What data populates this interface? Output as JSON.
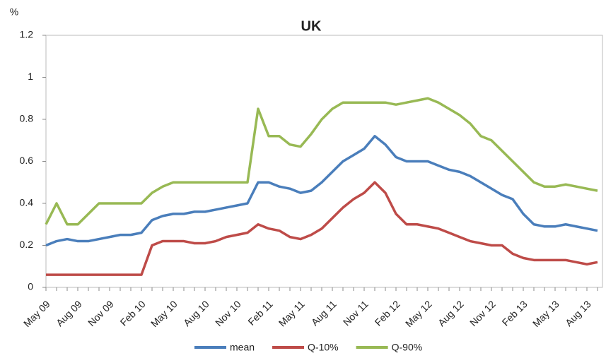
{
  "chart_data": {
    "type": "line",
    "title": "UK",
    "y_label": "%",
    "categories": [
      "May 09",
      null,
      null,
      "Aug 09",
      null,
      null,
      "Nov 09",
      null,
      null,
      "Feb 10",
      null,
      null,
      "May 10",
      null,
      null,
      "Aug 10",
      null,
      null,
      "Nov 10",
      null,
      null,
      "Feb 11",
      null,
      null,
      "May 11",
      null,
      null,
      "Aug 11",
      null,
      null,
      "Nov 11",
      null,
      null,
      "Feb 12",
      null,
      null,
      "May 12",
      null,
      null,
      "Aug 12",
      null,
      null,
      "Nov 12",
      null,
      null,
      "Feb 13",
      null,
      null,
      "May 13",
      null,
      null,
      "Aug 13",
      null
    ],
    "series": [
      {
        "name": "mean",
        "color": "#4a7ebb",
        "values": [
          0.2,
          0.22,
          0.23,
          0.22,
          0.22,
          0.23,
          0.24,
          0.25,
          0.25,
          0.26,
          0.32,
          0.34,
          0.35,
          0.35,
          0.36,
          0.36,
          0.37,
          0.38,
          0.39,
          0.4,
          0.5,
          0.5,
          0.48,
          0.47,
          0.45,
          0.46,
          0.5,
          0.55,
          0.6,
          0.63,
          0.66,
          0.72,
          0.68,
          0.62,
          0.6,
          0.6,
          0.6,
          0.58,
          0.56,
          0.55,
          0.53,
          0.5,
          0.47,
          0.44,
          0.42,
          0.35,
          0.3,
          0.29,
          0.29,
          0.3,
          0.29,
          0.28,
          0.27
        ]
      },
      {
        "name": "Q-10%",
        "color": "#be4b48",
        "values": [
          0.06,
          0.06,
          0.06,
          0.06,
          0.06,
          0.06,
          0.06,
          0.06,
          0.06,
          0.06,
          0.2,
          0.22,
          0.22,
          0.22,
          0.21,
          0.21,
          0.22,
          0.24,
          0.25,
          0.26,
          0.3,
          0.28,
          0.27,
          0.24,
          0.23,
          0.25,
          0.28,
          0.33,
          0.38,
          0.42,
          0.45,
          0.5,
          0.45,
          0.35,
          0.3,
          0.3,
          0.29,
          0.28,
          0.26,
          0.24,
          0.22,
          0.21,
          0.2,
          0.2,
          0.16,
          0.14,
          0.13,
          0.13,
          0.13,
          0.13,
          0.12,
          0.11,
          0.12
        ]
      },
      {
        "name": "Q-90%",
        "color": "#98b954",
        "values": [
          0.3,
          0.4,
          0.3,
          0.3,
          0.35,
          0.4,
          0.4,
          0.4,
          0.4,
          0.4,
          0.45,
          0.48,
          0.5,
          0.5,
          0.5,
          0.5,
          0.5,
          0.5,
          0.5,
          0.5,
          0.85,
          0.72,
          0.72,
          0.68,
          0.67,
          0.73,
          0.8,
          0.85,
          0.88,
          0.88,
          0.88,
          0.88,
          0.88,
          0.87,
          0.88,
          0.89,
          0.9,
          0.88,
          0.85,
          0.82,
          0.78,
          0.72,
          0.7,
          0.65,
          0.6,
          0.55,
          0.5,
          0.48,
          0.48,
          0.49,
          0.48,
          0.47,
          0.46
        ]
      }
    ],
    "ylim": [
      0,
      1.2
    ],
    "yticks": [
      0,
      0.2,
      0.4,
      0.6,
      0.8,
      1,
      1.2
    ],
    "grid": false,
    "legend": "bottom"
  }
}
